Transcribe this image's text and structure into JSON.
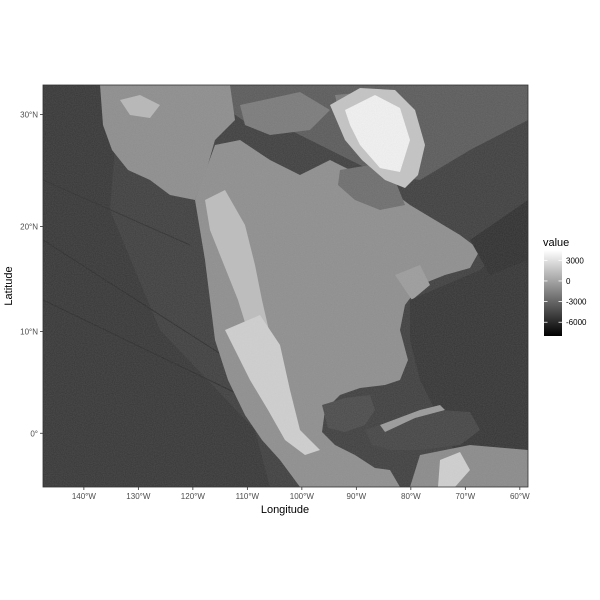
{
  "chart_data": {
    "type": "heatmap",
    "subtype": "raster map",
    "title": "",
    "xlabel": "Longitude",
    "ylabel": "Latitude",
    "x_ticks": [
      {
        "value": -140,
        "label": "140°W"
      },
      {
        "value": -130,
        "label": "130°W"
      },
      {
        "value": -120,
        "label": "120°W"
      },
      {
        "value": -110,
        "label": "110°W"
      },
      {
        "value": -100,
        "label": "100°W"
      },
      {
        "value": -90,
        "label": "90°W"
      },
      {
        "value": -80,
        "label": "80°W"
      },
      {
        "value": -70,
        "label": "70°W"
      },
      {
        "value": -60,
        "label": "60°W"
      }
    ],
    "y_ticks": [
      {
        "value": 0,
        "label": "0°"
      },
      {
        "value": 10,
        "label": "10°N"
      },
      {
        "value": 20,
        "label": "20°N"
      },
      {
        "value": 30,
        "label": "30°N"
      }
    ],
    "xlim": [
      -147.5,
      -58.5
    ],
    "ylim": [
      -5.3,
      32.5
    ],
    "y_projection": "mercator",
    "grid": false,
    "colorbar": {
      "title": "value",
      "min": -8000,
      "max": 4500,
      "colors": [
        "#000000",
        "#ffffff"
      ],
      "ticks": [
        {
          "value": 3000,
          "label": "3000"
        },
        {
          "value": 0,
          "label": "0"
        },
        {
          "value": -3000,
          "label": "-3000"
        },
        {
          "value": -6000,
          "label": "-6000"
        }
      ],
      "position": "right"
    }
  }
}
